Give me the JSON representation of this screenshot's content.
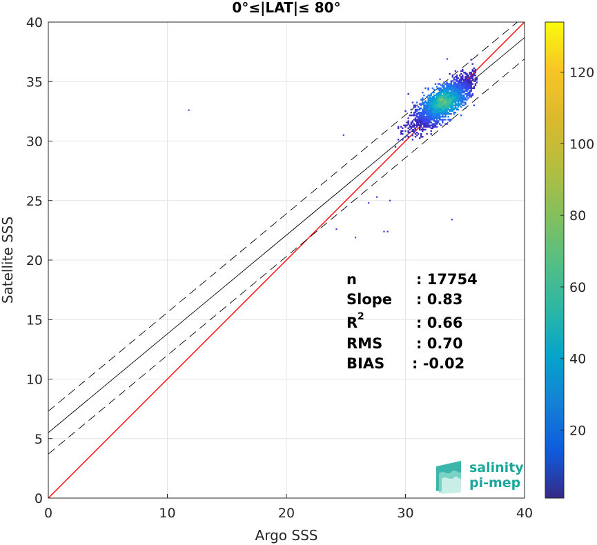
{
  "chart_data": {
    "type": "heatmap",
    "title": "0°≤|LAT|≤ 80°",
    "xlabel": "Argo SSS",
    "ylabel": "Satellite SSS",
    "xlim": [
      0,
      40
    ],
    "ylim": [
      0,
      40
    ],
    "x_ticks": [
      "0",
      "10",
      "20",
      "30",
      "40"
    ],
    "y_ticks": [
      "0",
      "5",
      "10",
      "15",
      "20",
      "25",
      "30",
      "35",
      "40"
    ],
    "grid": true,
    "lines": [
      {
        "name": "identity",
        "style": "solid",
        "color": "#ff0000",
        "intercept": 0,
        "slope": 1
      },
      {
        "name": "fit",
        "style": "solid",
        "color": "#000000",
        "intercept": 5.5,
        "slope": 0.83
      },
      {
        "name": "fit-upper",
        "style": "dashed",
        "color": "#000000",
        "intercept": 7.3,
        "slope": 0.83
      },
      {
        "name": "fit-lower",
        "style": "dashed",
        "color": "#000000",
        "intercept": 3.7,
        "slope": 0.83
      }
    ],
    "density_cluster": {
      "x_center": 33.2,
      "y_center": 33.3,
      "x_range": [
        26.5,
        36
      ],
      "y_range": [
        22.5,
        37.3
      ]
    },
    "outliers": [
      [
        11.8,
        32.6
      ],
      [
        24.2,
        22.6
      ],
      [
        25.8,
        21.9
      ],
      [
        28.2,
        22.4
      ],
      [
        28.5,
        22.4
      ],
      [
        33.9,
        23.4
      ],
      [
        24.8,
        30.5
      ],
      [
        26.9,
        24.8
      ],
      [
        27.6,
        25.3
      ],
      [
        28.7,
        25.0
      ],
      [
        33.5,
        36.9
      ],
      [
        32.9,
        35.2
      ]
    ],
    "colorbar": {
      "ticks": [
        "20",
        "40",
        "60",
        "80",
        "100",
        "120"
      ],
      "tick_values": [
        20,
        40,
        60,
        80,
        100,
        120
      ],
      "range": [
        1,
        134
      ],
      "colormap": "parula"
    },
    "stats": [
      {
        "label": "n",
        "value": ": 17754"
      },
      {
        "label": "Slope",
        "value": ": 0.83"
      },
      {
        "label": "R",
        "sup": "2",
        "value": ": 0.66"
      },
      {
        "label": "RMS",
        "value": ": 0.70"
      },
      {
        "label": "BIAS",
        "value": ": -0.02"
      }
    ]
  },
  "logo": {
    "line1": "salinity",
    "line2": "pi-mep",
    "color": "#1aa89c"
  }
}
